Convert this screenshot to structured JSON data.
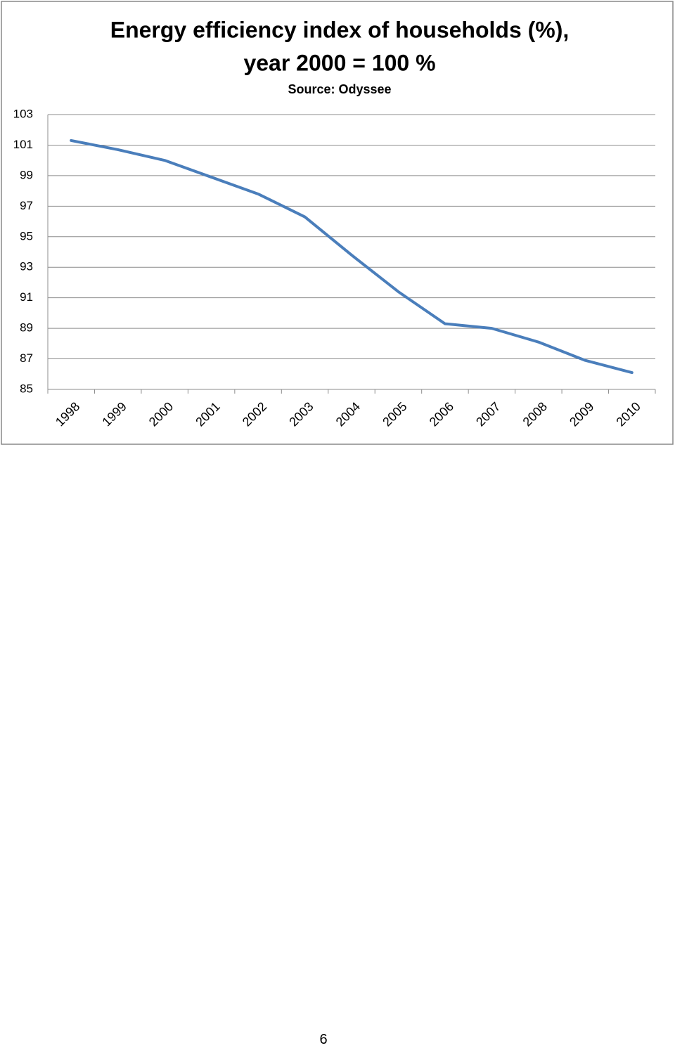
{
  "chart_data": {
    "type": "line",
    "title": [
      "Energy efficiency index of households (%),",
      "year 2000 = 100 %"
    ],
    "subtitle": "Source: Odyssee",
    "categories": [
      "1998",
      "1999",
      "2000",
      "2001",
      "2002",
      "2003",
      "2004",
      "2005",
      "2006",
      "2007",
      "2008",
      "2009",
      "2010"
    ],
    "values": [
      101.3,
      100.7,
      100.0,
      98.9,
      97.8,
      96.3,
      93.8,
      91.4,
      89.3,
      89.0,
      88.1,
      86.9,
      86.1
    ],
    "color": "#4a7ebb",
    "ylim": [
      85,
      103
    ],
    "yticks": [
      85,
      87,
      89,
      91,
      93,
      95,
      97,
      99,
      101,
      103
    ],
    "grid": true
  },
  "page_number": "6"
}
